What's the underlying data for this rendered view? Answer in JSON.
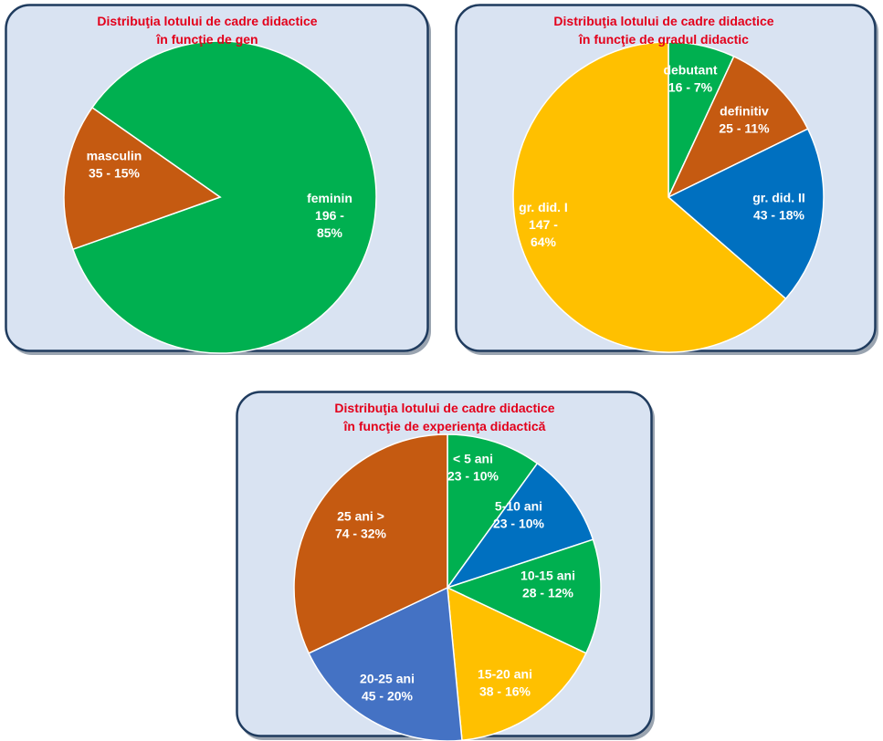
{
  "colors": {
    "panel_bg": "#d9e3f2",
    "panel_border": "#1f3b5e",
    "panel_shadow": "#9aa4b0",
    "title": "#e3001b",
    "label": "#ffffff"
  },
  "chart_data": [
    {
      "type": "pie",
      "title_lines": [
        "Distribuţia lotului de cadre didactice",
        "în funcţie de gen"
      ],
      "start_angle_deg": -55,
      "slices": [
        {
          "name": "feminin",
          "value": 196,
          "percent": "85%",
          "color": "#00b050",
          "label_lines": [
            "feminin",
            "196  -",
            "85%"
          ]
        },
        {
          "name": "masculin",
          "value": 35,
          "percent": "15%",
          "color": "#c55a11",
          "label_lines": [
            "masculin",
            "35  -  15%"
          ]
        }
      ]
    },
    {
      "type": "pie",
      "title_lines": [
        "Distribuţia lotului de cadre didactice",
        "în funcţie de gradul didactic"
      ],
      "start_angle_deg": 0,
      "slices": [
        {
          "name": "debutant",
          "value": 16,
          "percent": "7%",
          "color": "#00b050",
          "label_lines": [
            "debutant",
            "16  -  7%"
          ]
        },
        {
          "name": "definitiv",
          "value": 25,
          "percent": "11%",
          "color": "#c55a11",
          "label_lines": [
            "definitiv",
            "25  -  11%"
          ]
        },
        {
          "name": "gr. did.  II",
          "value": 43,
          "percent": "18%",
          "color": "#0070c0",
          "label_lines": [
            "gr. did.  II",
            "43  -  18%"
          ]
        },
        {
          "name": "gr. did.  I",
          "value": 147,
          "percent": "64%",
          "color": "#ffc000",
          "label_lines": [
            "gr. did.  I",
            "147  -",
            "64%"
          ]
        }
      ]
    },
    {
      "type": "pie",
      "title_lines": [
        "Distribuţia lotului de cadre didactice",
        "în funcţie de experienţa didactică"
      ],
      "start_angle_deg": 0,
      "slices": [
        {
          "name": "< 5 ani",
          "value": 23,
          "percent": "10%",
          "color": "#00b050",
          "label_lines": [
            "< 5 ani",
            "23  -  10%"
          ]
        },
        {
          "name": "5-10 ani",
          "value": 23,
          "percent": "10%",
          "color": "#0070c0",
          "label_lines": [
            "5-10 ani",
            "23  -  10%"
          ]
        },
        {
          "name": "10-15 ani",
          "value": 28,
          "percent": "12%",
          "color": "#00b050",
          "label_lines": [
            "10-15 ani",
            "28  -  12%"
          ]
        },
        {
          "name": "15-20 ani",
          "value": 38,
          "percent": "16%",
          "color": "#ffc000",
          "label_lines": [
            "15-20 ani",
            "38  -  16%"
          ]
        },
        {
          "name": "20-25 ani",
          "value": 45,
          "percent": "20%",
          "color": "#4472c4",
          "label_lines": [
            "20-25 ani",
            "45  -  20%"
          ]
        },
        {
          "name": "25 ani >",
          "value": 74,
          "percent": "32%",
          "color": "#c55a11",
          "label_lines": [
            "25 ani >",
            "74  -  32%"
          ]
        }
      ]
    }
  ]
}
